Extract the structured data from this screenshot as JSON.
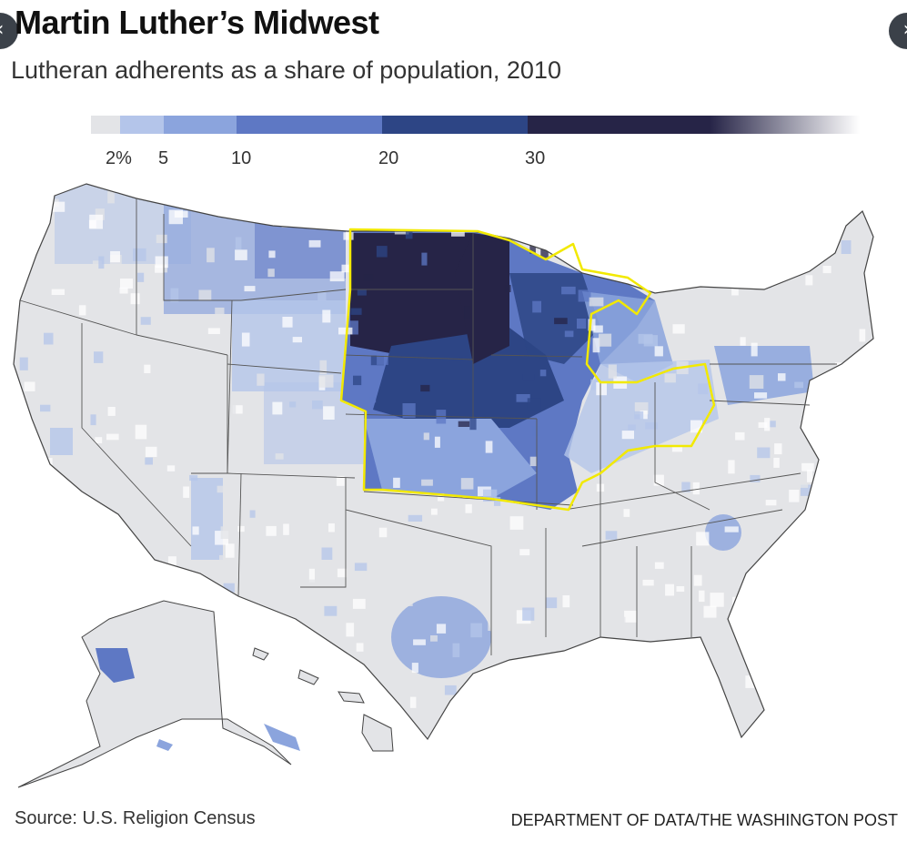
{
  "header": {
    "title": "Martin Luther’s Midwest",
    "subtitle": "Lutheran adherents as a share of population, 2010"
  },
  "legend": {
    "labels": [
      "2%",
      "5",
      "10",
      "20",
      "30"
    ],
    "colors": [
      "#e3e4e7",
      "#b4c5ea",
      "#8ba4dd",
      "#5e78c4",
      "#2d4585",
      "#262447",
      "#ffffff"
    ]
  },
  "map": {
    "highlight_color": "#f2e900",
    "state_border_color": "#555555",
    "base_color": "#e3e4e7"
  },
  "footer": {
    "source": "Source: U.S. Religion Census",
    "credit": "DEPARTMENT OF DATA/THE WASHINGTON POST"
  },
  "nav": {
    "prev_icon": "chevron-left-icon",
    "next_icon": "chevron-right-icon"
  }
}
